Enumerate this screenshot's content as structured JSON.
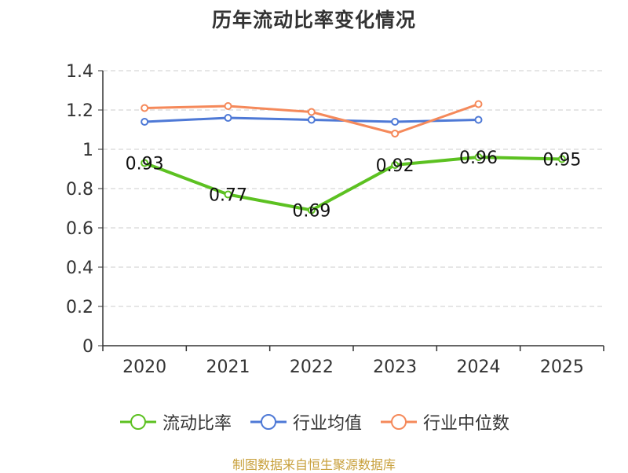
{
  "chart_data": {
    "type": "line",
    "title": "历年流动比率变化情况",
    "categories": [
      "2020",
      "2021",
      "2022",
      "2023",
      "2024",
      "2025"
    ],
    "ylim": [
      0,
      1.4
    ],
    "yticks": [
      "0",
      "0.2",
      "0.4",
      "0.6",
      "0.8",
      "1",
      "1.2",
      "1.4"
    ],
    "grid": true,
    "legend_position": "bottom-center",
    "series": [
      {
        "name": "流动比率",
        "color": "#5cc121",
        "values": [
          0.93,
          0.77,
          0.69,
          0.92,
          0.96,
          0.95
        ],
        "labels": [
          "0.93",
          "0.77",
          "0.69",
          "0.92",
          "0.96",
          "0.95"
        ]
      },
      {
        "name": "行业均值",
        "color": "#4e79d6",
        "values": [
          1.14,
          1.16,
          1.15,
          1.14,
          1.15,
          null
        ]
      },
      {
        "name": "行业中位数",
        "color": "#f5895a",
        "values": [
          1.21,
          1.22,
          1.19,
          1.08,
          1.23,
          null
        ]
      }
    ]
  },
  "source": "制图数据来自恒生聚源数据库"
}
